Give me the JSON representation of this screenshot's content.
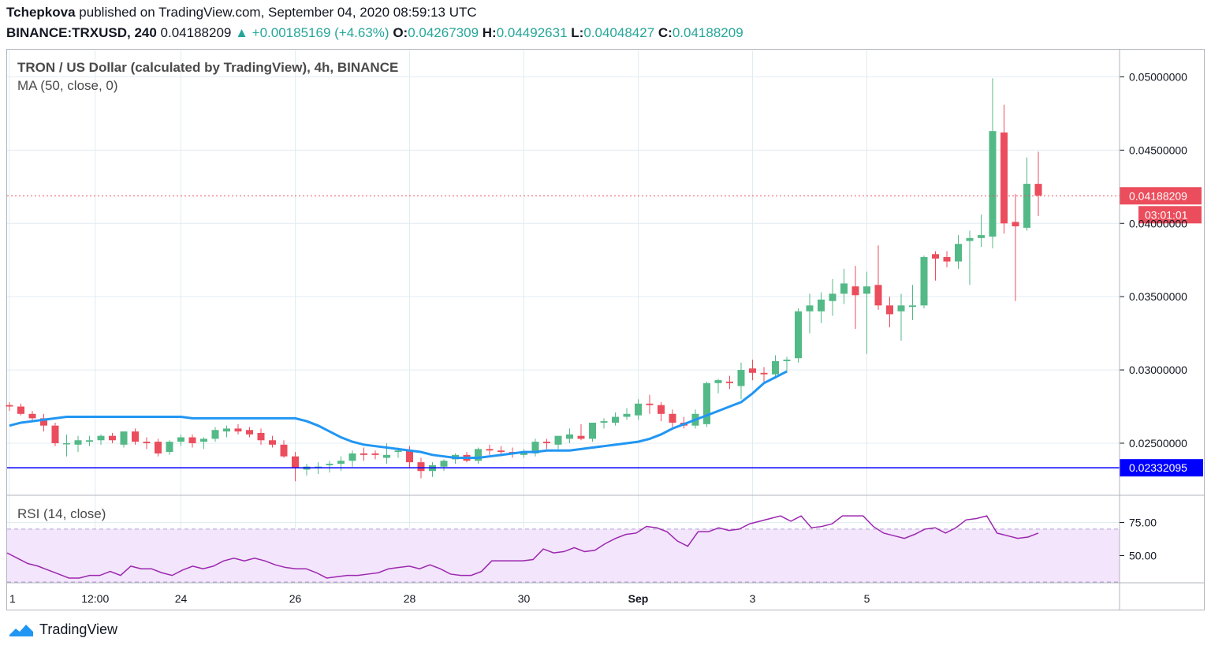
{
  "header": {
    "author": "Tchepkova",
    "published": "published on TradingView.com, September 04, 2020 08:59:13 UTC",
    "symbol": "BINANCE:TRXUSD, 240",
    "last": "0.04188209",
    "change": "▲ +0.00185169 (+4.63%)",
    "o_label": "O:",
    "o_val": "0.04267309",
    "h_label": "H:",
    "h_val": "0.04492631",
    "l_label": "L:",
    "l_val": "0.04048427",
    "c_label": "C:",
    "c_val": "0.04188209"
  },
  "legend": {
    "title": "TRON / US Dollar (calculated by TradingView), 4h, BINANCE",
    "ma": "MA (50, close, 0)",
    "rsi": "RSI (14, close)"
  },
  "price_tags": {
    "last": "0.04188209",
    "countdown": "03:01:01",
    "support": "0.02332095"
  },
  "brand": "TradingView",
  "colors": {
    "up": "#53b987",
    "down": "#eb4d5c",
    "ma": "#2196f3",
    "support": "#0000ff",
    "rsi_line": "#9c27b0",
    "rsi_band": "#f3e5fb",
    "grid": "#e1ecf2",
    "last_price": "#eb4d5c"
  },
  "chart_data": [
    {
      "type": "candlestick",
      "title": "TRON / US Dollar (calculated by TradingView), 4h, BINANCE",
      "ylim": [
        0.0215,
        0.0518
      ],
      "y_ticks": [
        "0.05000000",
        "0.04500000",
        "0.04000000",
        "0.03500000",
        "0.03000000",
        "0.02500000"
      ],
      "y_tick_values": [
        0.05,
        0.045,
        0.04,
        0.035,
        0.03,
        0.025
      ],
      "x_ticks": [
        "1",
        "12:00",
        "24",
        "26",
        "28",
        "30",
        "Sep",
        "3",
        "5"
      ],
      "x_tick_index": [
        0,
        7.5,
        15,
        25,
        35,
        45,
        55,
        65,
        75
      ],
      "ohlc": [
        [
          0.0276,
          0.0278,
          0.0272,
          0.0275
        ],
        [
          0.0275,
          0.0277,
          0.0269,
          0.027
        ],
        [
          0.027,
          0.0272,
          0.0265,
          0.0267
        ],
        [
          0.0267,
          0.027,
          0.0258,
          0.0262
        ],
        [
          0.0262,
          0.0264,
          0.0248,
          0.025
        ],
        [
          0.025,
          0.0256,
          0.0241,
          0.025
        ],
        [
          0.0249,
          0.0255,
          0.0244,
          0.0252
        ],
        [
          0.0251,
          0.0255,
          0.0248,
          0.0252
        ],
        [
          0.0252,
          0.0256,
          0.0249,
          0.0255
        ],
        [
          0.0255,
          0.0257,
          0.025,
          0.0252
        ],
        [
          0.0249,
          0.0258,
          0.0247,
          0.0258
        ],
        [
          0.0258,
          0.026,
          0.0249,
          0.0251
        ],
        [
          0.0251,
          0.0254,
          0.0246,
          0.025
        ],
        [
          0.0251,
          0.0253,
          0.0241,
          0.0243
        ],
        [
          0.0244,
          0.0252,
          0.0242,
          0.0251
        ],
        [
          0.0251,
          0.0256,
          0.0248,
          0.0254
        ],
        [
          0.0254,
          0.0256,
          0.0247,
          0.025
        ],
        [
          0.0251,
          0.0254,
          0.0246,
          0.0253
        ],
        [
          0.0253,
          0.0261,
          0.0251,
          0.0259
        ],
        [
          0.0258,
          0.0262,
          0.0254,
          0.026
        ],
        [
          0.026,
          0.0263,
          0.0256,
          0.0258
        ],
        [
          0.0259,
          0.0261,
          0.0254,
          0.0256
        ],
        [
          0.0257,
          0.026,
          0.0249,
          0.0252
        ],
        [
          0.0252,
          0.0255,
          0.0247,
          0.0249
        ],
        [
          0.0249,
          0.0252,
          0.024,
          0.0241
        ],
        [
          0.0241,
          0.0244,
          0.0224,
          0.0233
        ],
        [
          0.0232,
          0.0236,
          0.0228,
          0.0234
        ],
        [
          0.0233,
          0.0237,
          0.0229,
          0.0234
        ],
        [
          0.0235,
          0.0238,
          0.023,
          0.0236
        ],
        [
          0.0236,
          0.0241,
          0.0231,
          0.0238
        ],
        [
          0.0238,
          0.0245,
          0.0234,
          0.0243
        ],
        [
          0.0243,
          0.0247,
          0.0238,
          0.0242
        ],
        [
          0.0243,
          0.0245,
          0.0239,
          0.0242
        ],
        [
          0.024,
          0.025,
          0.0236,
          0.0242
        ],
        [
          0.0244,
          0.0247,
          0.024,
          0.0245
        ],
        [
          0.0245,
          0.0248,
          0.0233,
          0.0237
        ],
        [
          0.0237,
          0.024,
          0.0226,
          0.0231
        ],
        [
          0.0231,
          0.0237,
          0.0227,
          0.0235
        ],
        [
          0.0234,
          0.0239,
          0.0231,
          0.0238
        ],
        [
          0.0239,
          0.0243,
          0.0236,
          0.0242
        ],
        [
          0.0242,
          0.0244,
          0.0237,
          0.0238
        ],
        [
          0.0238,
          0.0247,
          0.0236,
          0.0246
        ],
        [
          0.0246,
          0.0249,
          0.0242,
          0.0245
        ],
        [
          0.0245,
          0.0248,
          0.0241,
          0.0244
        ],
        [
          0.0244,
          0.0247,
          0.024,
          0.0243
        ],
        [
          0.0242,
          0.0246,
          0.024,
          0.0244
        ],
        [
          0.0243,
          0.0253,
          0.0241,
          0.0251
        ],
        [
          0.0251,
          0.0253,
          0.0246,
          0.025
        ],
        [
          0.0249,
          0.0255,
          0.0246,
          0.0255
        ],
        [
          0.0253,
          0.026,
          0.025,
          0.0256
        ],
        [
          0.0255,
          0.0263,
          0.0252,
          0.0253
        ],
        [
          0.0253,
          0.0264,
          0.0251,
          0.0264
        ],
        [
          0.0264,
          0.0267,
          0.026,
          0.0265
        ],
        [
          0.0264,
          0.0271,
          0.0262,
          0.0268
        ],
        [
          0.0268,
          0.0274,
          0.0266,
          0.027
        ],
        [
          0.0269,
          0.028,
          0.0266,
          0.0277
        ],
        [
          0.0277,
          0.0283,
          0.027,
          0.0276
        ],
        [
          0.0276,
          0.0278,
          0.0265,
          0.027
        ],
        [
          0.027,
          0.0273,
          0.0261,
          0.0264
        ],
        [
          0.0264,
          0.0268,
          0.026,
          0.0262
        ],
        [
          0.0262,
          0.0273,
          0.026,
          0.027
        ],
        [
          0.0263,
          0.0292,
          0.0261,
          0.0291
        ],
        [
          0.0291,
          0.0294,
          0.0284,
          0.0293
        ],
        [
          0.0292,
          0.0296,
          0.0287,
          0.0291
        ],
        [
          0.0289,
          0.0305,
          0.028,
          0.03
        ],
        [
          0.0301,
          0.0307,
          0.0293,
          0.0298
        ],
        [
          0.0298,
          0.0302,
          0.0291,
          0.0297
        ],
        [
          0.0297,
          0.031,
          0.0294,
          0.0306
        ],
        [
          0.0306,
          0.0309,
          0.0298,
          0.0307
        ],
        [
          0.0308,
          0.0342,
          0.0305,
          0.034
        ],
        [
          0.034,
          0.0352,
          0.0325,
          0.0344
        ],
        [
          0.034,
          0.0353,
          0.0332,
          0.0348
        ],
        [
          0.0347,
          0.0362,
          0.0337,
          0.0352
        ],
        [
          0.0352,
          0.0369,
          0.0345,
          0.0359
        ],
        [
          0.0357,
          0.0371,
          0.0328,
          0.0351
        ],
        [
          0.0352,
          0.0367,
          0.0311,
          0.0357
        ],
        [
          0.0358,
          0.0385,
          0.0341,
          0.0344
        ],
        [
          0.0344,
          0.035,
          0.0329,
          0.0338
        ],
        [
          0.034,
          0.0352,
          0.032,
          0.0344
        ],
        [
          0.0343,
          0.0358,
          0.0334,
          0.0344
        ],
        [
          0.0344,
          0.0378,
          0.0342,
          0.0377
        ],
        [
          0.0379,
          0.0381,
          0.0361,
          0.0376
        ],
        [
          0.0377,
          0.0381,
          0.037,
          0.0374
        ],
        [
          0.0374,
          0.0392,
          0.0369,
          0.0386
        ],
        [
          0.0388,
          0.0395,
          0.0358,
          0.039
        ],
        [
          0.039,
          0.0406,
          0.0384,
          0.0392
        ],
        [
          0.0391,
          0.0499,
          0.0383,
          0.0463
        ],
        [
          0.0462,
          0.0481,
          0.0393,
          0.04
        ],
        [
          0.0401,
          0.042,
          0.0347,
          0.0398
        ],
        [
          0.0397,
          0.0445,
          0.0395,
          0.0427
        ],
        [
          0.0427,
          0.0449,
          0.0405,
          0.0419
        ]
      ],
      "ma": [
        0.0262,
        0.0264,
        0.0265,
        0.0266,
        0.0267,
        0.0268,
        0.0268,
        0.0268,
        0.0268,
        0.0268,
        0.0268,
        0.0268,
        0.0268,
        0.0268,
        0.0268,
        0.0268,
        0.0267,
        0.0267,
        0.0267,
        0.0267,
        0.0267,
        0.0267,
        0.0267,
        0.0267,
        0.0267,
        0.0267,
        0.0265,
        0.0262,
        0.0258,
        0.0254,
        0.0251,
        0.0249,
        0.0248,
        0.0247,
        0.0246,
        0.0245,
        0.0244,
        0.0242,
        0.0241,
        0.024,
        0.024,
        0.024,
        0.0241,
        0.0242,
        0.0243,
        0.0244,
        0.0244,
        0.0245,
        0.0245,
        0.0245,
        0.0246,
        0.0247,
        0.0248,
        0.0249,
        0.025,
        0.0251,
        0.0253,
        0.0256,
        0.026,
        0.0263,
        0.0266,
        0.0269,
        0.0272,
        0.0275,
        0.0278,
        0.0284,
        0.0291,
        0.0295,
        0.0299
      ],
      "ma_start_index": 0,
      "support_level": 0.02332095,
      "last_price": 0.04188209
    },
    {
      "type": "line",
      "title": "RSI (14, close)",
      "ylim": [
        30,
        95
      ],
      "y_ticks": [
        "75.00",
        "50.00"
      ],
      "y_tick_values": [
        75,
        50
      ],
      "band": [
        30,
        70
      ],
      "values": [
        52,
        48,
        44,
        42,
        39,
        36,
        33,
        33,
        35,
        35,
        38,
        35,
        42,
        40,
        40,
        37,
        35,
        39,
        42,
        40,
        42,
        46,
        48,
        46,
        48,
        46,
        43,
        41,
        40,
        40,
        37,
        33,
        34,
        35,
        35,
        36,
        37,
        40,
        41,
        42,
        40,
        43,
        40,
        36,
        35,
        35,
        38,
        46,
        46,
        46,
        46,
        47,
        55,
        52,
        53,
        56,
        53,
        54,
        59,
        63,
        66,
        67,
        72,
        71,
        68,
        61,
        57,
        68,
        68,
        71,
        69,
        70,
        74,
        76,
        78,
        80,
        76,
        80,
        71,
        72,
        74,
        80,
        80,
        80,
        72,
        67,
        65,
        63,
        66,
        70,
        71,
        67,
        71,
        77,
        78,
        80,
        67,
        65,
        63,
        64,
        67
      ]
    }
  ]
}
